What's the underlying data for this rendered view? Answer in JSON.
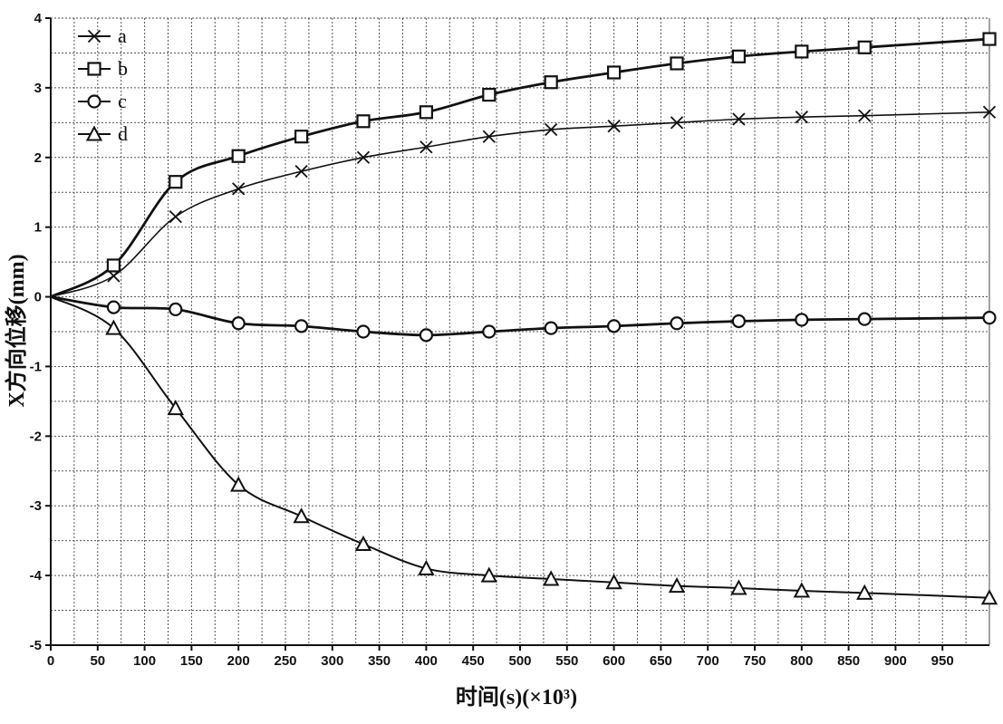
{
  "chart_data": {
    "type": "line",
    "title": "",
    "xlabel": "时间(s)(×10³)",
    "ylabel": "X方向位移(mm)",
    "xlim": [
      0,
      1000
    ],
    "ylim": [
      -5,
      4
    ],
    "x_ticks": [
      0,
      50,
      100,
      150,
      200,
      250,
      300,
      350,
      400,
      450,
      500,
      550,
      600,
      650,
      700,
      750,
      800,
      850,
      900,
      950
    ],
    "y_ticks": [
      -5,
      -4,
      -3,
      -2,
      -1,
      0,
      1,
      2,
      3,
      4
    ],
    "grid": true,
    "legend_position": "top-left",
    "x": [
      0,
      67,
      133,
      200,
      267,
      333,
      400,
      467,
      533,
      600,
      667,
      733,
      800,
      867,
      1000
    ],
    "series": [
      {
        "name": "a",
        "marker": "x",
        "color": "#111111",
        "values": [
          0,
          0.3,
          1.15,
          1.55,
          1.8,
          2.0,
          2.15,
          2.3,
          2.4,
          2.45,
          2.5,
          2.55,
          2.58,
          2.6,
          2.65
        ]
      },
      {
        "name": "b",
        "marker": "square",
        "color": "#111111",
        "values": [
          0,
          0.45,
          1.65,
          2.02,
          2.3,
          2.52,
          2.65,
          2.9,
          3.08,
          3.22,
          3.35,
          3.45,
          3.52,
          3.58,
          3.7
        ]
      },
      {
        "name": "c",
        "marker": "circle",
        "color": "#111111",
        "values": [
          0,
          -0.15,
          -0.18,
          -0.38,
          -0.42,
          -0.5,
          -0.55,
          -0.5,
          -0.45,
          -0.42,
          -0.38,
          -0.35,
          -0.33,
          -0.32,
          -0.3
        ]
      },
      {
        "name": "d",
        "marker": "triangle",
        "color": "#111111",
        "values": [
          0,
          -0.45,
          -1.6,
          -2.7,
          -3.15,
          -3.55,
          -3.9,
          -4.0,
          -4.05,
          -4.1,
          -4.15,
          -4.18,
          -4.22,
          -4.25,
          -4.32
        ]
      }
    ]
  }
}
